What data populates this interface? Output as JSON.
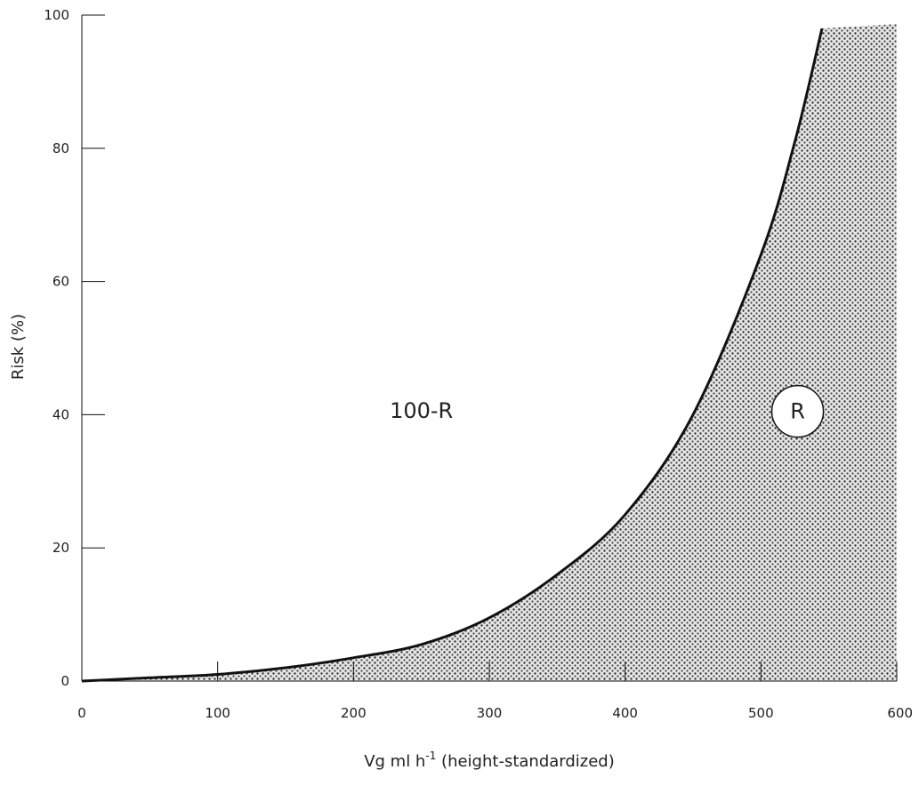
{
  "chart_data": {
    "type": "area",
    "title": "",
    "xlabel": "Vg ml h",
    "xlabel_superscript": "-1",
    "xlabel_suffix": " (height-standardized)",
    "ylabel": "Risk (%)",
    "xlim": [
      0,
      600
    ],
    "ylim": [
      0,
      100
    ],
    "xticks": [
      0,
      100,
      200,
      300,
      400,
      500,
      600
    ],
    "yticks": [
      0,
      20,
      40,
      60,
      80,
      100
    ],
    "grid": false,
    "region_above_label": "100-R",
    "region_below_label": "R",
    "series": [
      {
        "x": [
          0,
          50,
          100,
          150,
          200,
          250,
          300,
          350,
          400,
          450,
          500,
          525,
          545
        ],
        "y": [
          0,
          0.5,
          1,
          2,
          3.5,
          5.5,
          9.5,
          16,
          25,
          40,
          64,
          81,
          98
        ]
      }
    ],
    "colors": {
      "line": "#111111",
      "fill_dot": "#333333",
      "fill_bg": "#e6e6e6"
    }
  }
}
